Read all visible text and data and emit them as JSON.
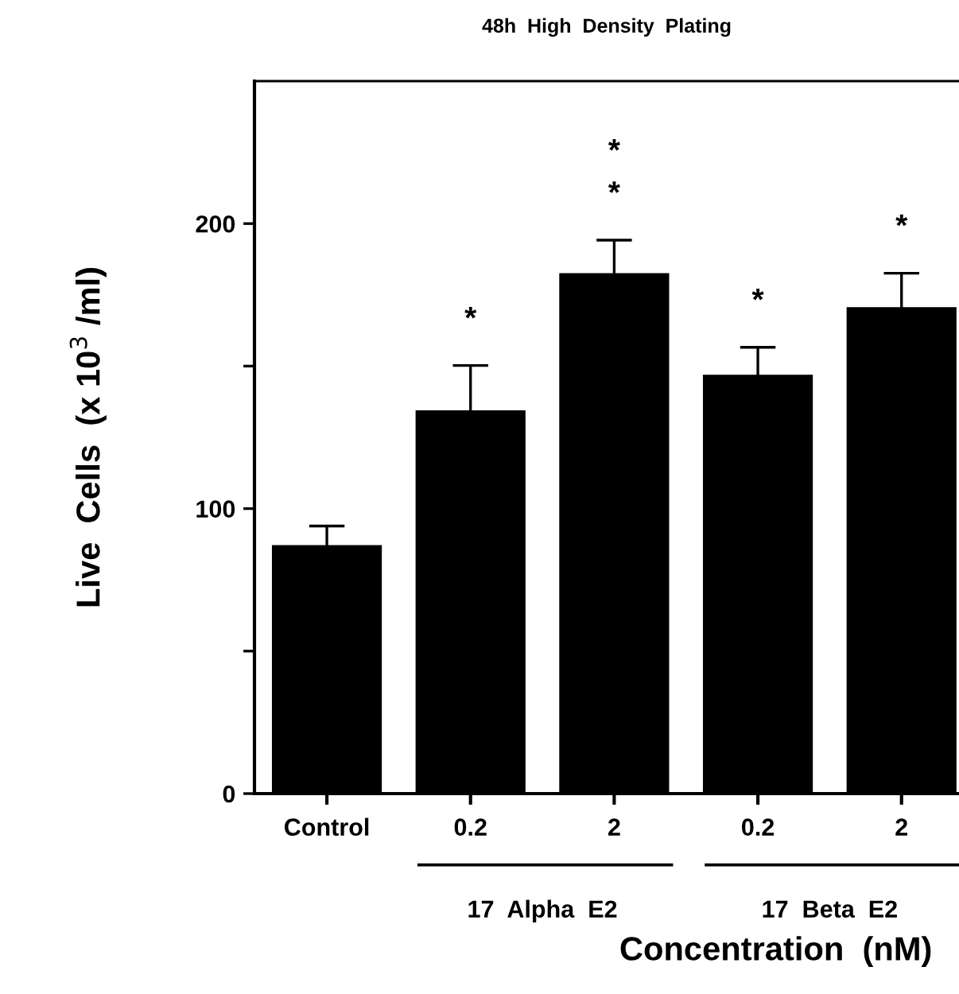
{
  "chart_data": {
    "type": "bar",
    "title": "48h  High  Density  Plating",
    "xlabel": "Concentration  (nM)",
    "ylabel": "Live  Cells  (x 10$^{3}$ /ml)",
    "categories": [
      "Control",
      "0.2",
      "2",
      "0.2",
      "2"
    ],
    "values": [
      87.2,
      134.5,
      182.6,
      147,
      170.7
    ],
    "errors": [
      6.7,
      15.7,
      11.6,
      9.6,
      11.9
    ],
    "color": "#000000",
    "ylim": [
      0,
      250
    ],
    "yticks": [
      0,
      {
        "value": 50,
        "label": null
      },
      100,
      {
        "value": 150,
        "label": null
      },
      200
    ],
    "grid": false,
    "annotations": [
      "*",
      "*\n*",
      "*",
      "*",
      "17  Alpha  E2",
      "17  Beta  E2"
    ]
  }
}
